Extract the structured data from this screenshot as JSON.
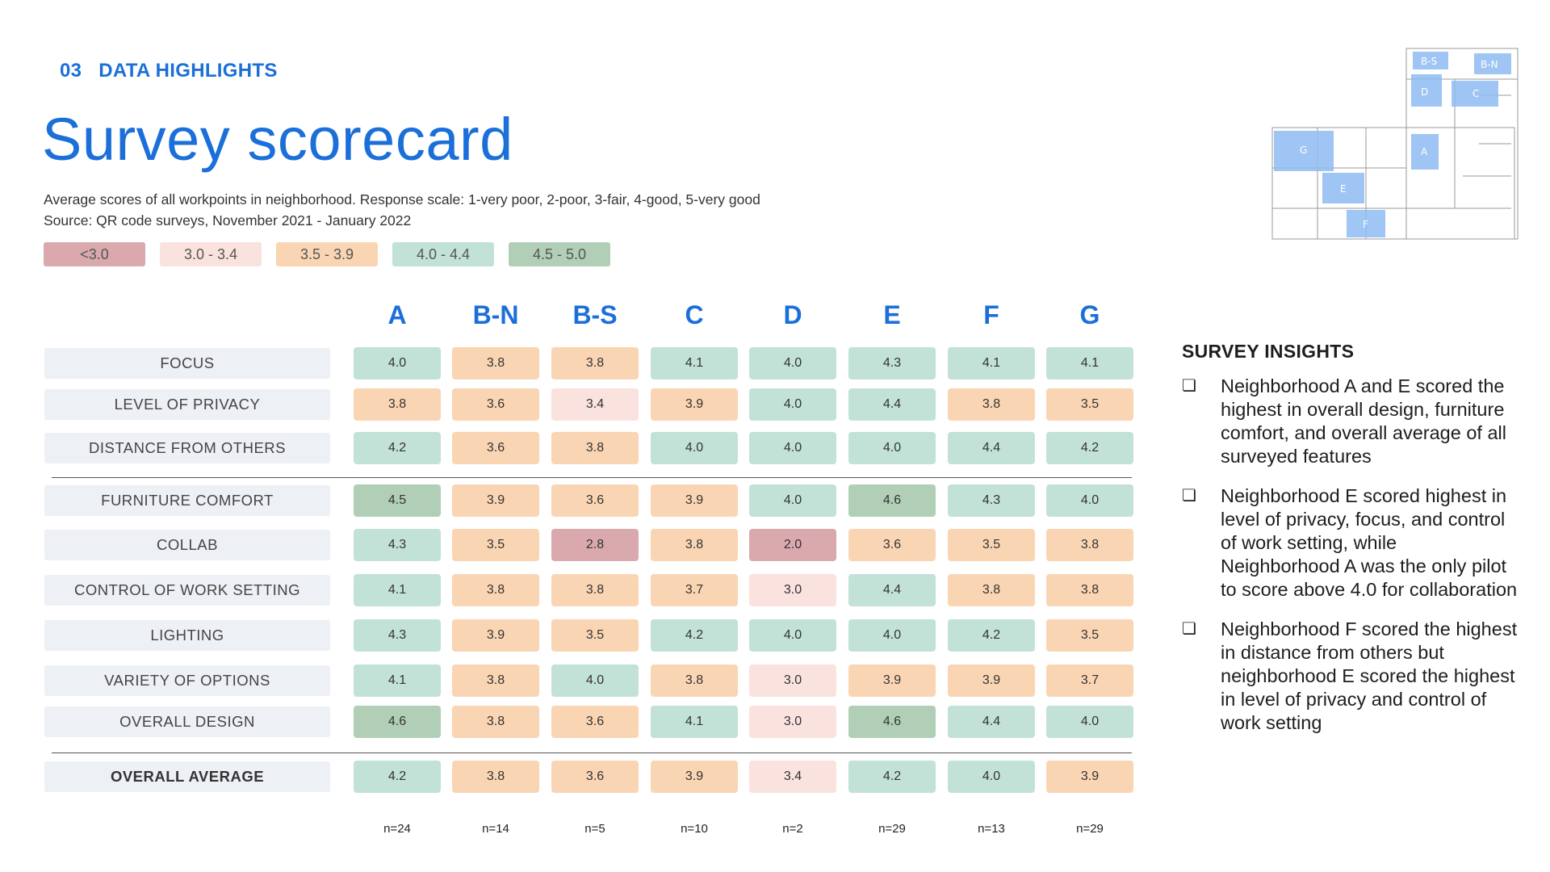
{
  "section": {
    "number": "03",
    "label": "DATA HIGHLIGHTS"
  },
  "title": "Survey scorecard",
  "subtitle": {
    "line1": "Average scores of all workpoints in neighborhood. Response scale: 1-very poor, 2-poor, 3-fair, 4-good, 5-very good",
    "line2": "Source: QR code surveys, November 2021 - January 2022"
  },
  "legend": [
    {
      "label": "<3.0",
      "color": "#d9a9ae"
    },
    {
      "label": "3.0 - 3.4",
      "color": "#fae2df"
    },
    {
      "label": "3.5 - 3.9",
      "color": "#fad5b4"
    },
    {
      "label": "4.0 - 4.4",
      "color": "#c3e2d7"
    },
    {
      "label": "4.5 - 5.0",
      "color": "#b1cfb6"
    }
  ],
  "columns": [
    "A",
    "B-N",
    "B-S",
    "C",
    "D",
    "E",
    "F",
    "G"
  ],
  "rows": [
    {
      "label": "FOCUS",
      "values": [
        "4.0",
        "3.8",
        "3.8",
        "4.1",
        "4.0",
        "4.3",
        "4.1",
        "4.1"
      ]
    },
    {
      "label": "LEVEL OF PRIVACY",
      "values": [
        "3.8",
        "3.6",
        "3.4",
        "3.9",
        "4.0",
        "4.4",
        "3.8",
        "3.5"
      ]
    },
    {
      "label": "DISTANCE FROM OTHERS",
      "values": [
        "4.2",
        "3.6",
        "3.8",
        "4.0",
        "4.0",
        "4.0",
        "4.4",
        "4.2"
      ]
    },
    {
      "label": "FURNITURE COMFORT",
      "values": [
        "4.5",
        "3.9",
        "3.6",
        "3.9",
        "4.0",
        "4.6",
        "4.3",
        "4.0"
      ]
    },
    {
      "label": "COLLAB",
      "values": [
        "4.3",
        "3.5",
        "2.8",
        "3.8",
        "2.0",
        "3.6",
        "3.5",
        "3.8"
      ]
    },
    {
      "label": "CONTROL OF WORK SETTING",
      "values": [
        "4.1",
        "3.8",
        "3.8",
        "3.7",
        "3.0",
        "4.4",
        "3.8",
        "3.8"
      ]
    },
    {
      "label": "LIGHTING",
      "values": [
        "4.3",
        "3.9",
        "3.5",
        "4.2",
        "4.0",
        "4.0",
        "4.2",
        "3.5"
      ]
    },
    {
      "label": "VARIETY OF OPTIONS",
      "values": [
        "4.1",
        "3.8",
        "4.0",
        "3.8",
        "3.0",
        "3.9",
        "3.9",
        "3.7"
      ]
    },
    {
      "label": "OVERALL DESIGN",
      "values": [
        "4.6",
        "3.8",
        "3.6",
        "4.1",
        "3.0",
        "4.6",
        "4.4",
        "4.0"
      ]
    },
    {
      "label": "OVERALL AVERAGE",
      "values": [
        "4.2",
        "3.8",
        "3.6",
        "3.9",
        "3.4",
        "4.2",
        "4.0",
        "3.9"
      ]
    }
  ],
  "sample_sizes": [
    "n=24",
    "n=14",
    "n=5",
    "n=10",
    "n=2",
    "n=29",
    "n=13",
    "n=29"
  ],
  "insights": {
    "title": "SURVEY INSIGHTS",
    "bullet_icon": "checkbox-bullet-icon",
    "items": [
      "Neighborhood A and E scored the highest in overall design, furniture comfort, and overall average of all surveyed features",
      "Neighborhood E scored highest in level of privacy, focus, and control of work setting, while Neighborhood A was the only pilot to score above 4.0 for collaboration",
      "Neighborhood F scored the highest in distance from others but neighborhood E scored the highest in level of privacy and control of work setting"
    ]
  },
  "floorplan": {
    "labels": [
      "B-S",
      "B-N",
      "D",
      "C",
      "A",
      "G",
      "E",
      "F"
    ],
    "highlight_color": "#7fb0f0"
  }
}
